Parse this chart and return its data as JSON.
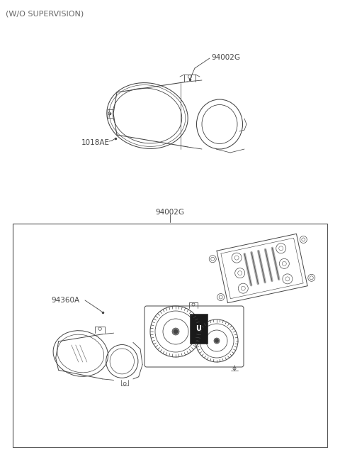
{
  "title_top": "(W/O SUPERVISION)",
  "bg_color": "#ffffff",
  "line_color": "#444444",
  "text_color": "#444444",
  "label_94002G_top": "94002G",
  "label_1018AE": "1018AE",
  "label_94002G_box": "94002G",
  "label_94360A": "94360A",
  "fig_width": 4.8,
  "fig_height": 6.55,
  "dpi": 100
}
